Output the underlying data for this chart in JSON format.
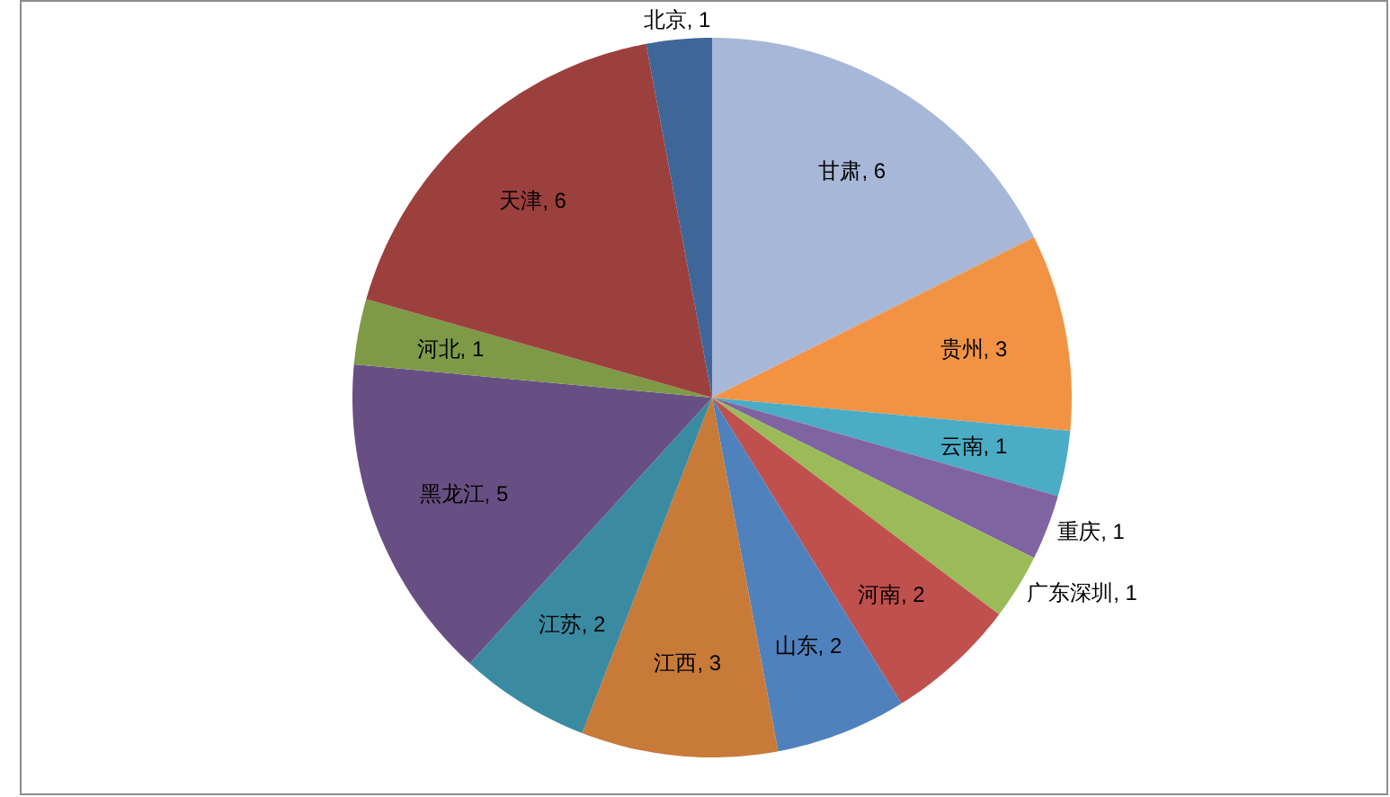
{
  "chart_data": {
    "type": "pie",
    "categories": [
      "甘肃",
      "贵州",
      "云南",
      "重庆",
      "广东深圳",
      "河南",
      "山东",
      "江西",
      "江苏",
      "黑龙江",
      "河北",
      "天津",
      "北京"
    ],
    "values": [
      6,
      3,
      1,
      1,
      1,
      2,
      2,
      3,
      2,
      5,
      1,
      6,
      1
    ],
    "value_labels": [
      ", 6",
      ", 3",
      ", 1",
      ", 1",
      ", 1",
      ", 2",
      ", 2",
      ", 3",
      ", 2",
      ", 5",
      ", 1",
      ", 6",
      ", 1"
    ],
    "colors": [
      "#a7b7d7",
      "#f29344",
      "#4bacc6",
      "#8064a2",
      "#9bbb59",
      "#c0504d",
      "#4f81bd",
      "#c87a38",
      "#3a8ba1",
      "#684f83",
      "#7e9a47",
      "#9c403e",
      "#3e6699"
    ]
  }
}
